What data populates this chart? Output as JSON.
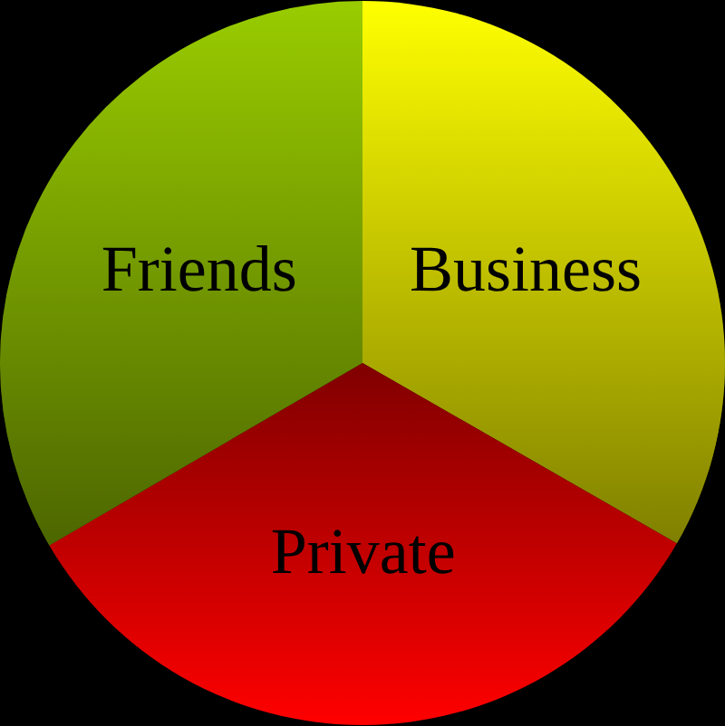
{
  "chart_data": {
    "type": "pie",
    "categories": [
      "Business",
      "Private",
      "Friends"
    ],
    "values": [
      33.3,
      33.3,
      33.4
    ],
    "colors": [
      "#ffff00",
      "#ff0000",
      "#99cc00"
    ]
  }
}
